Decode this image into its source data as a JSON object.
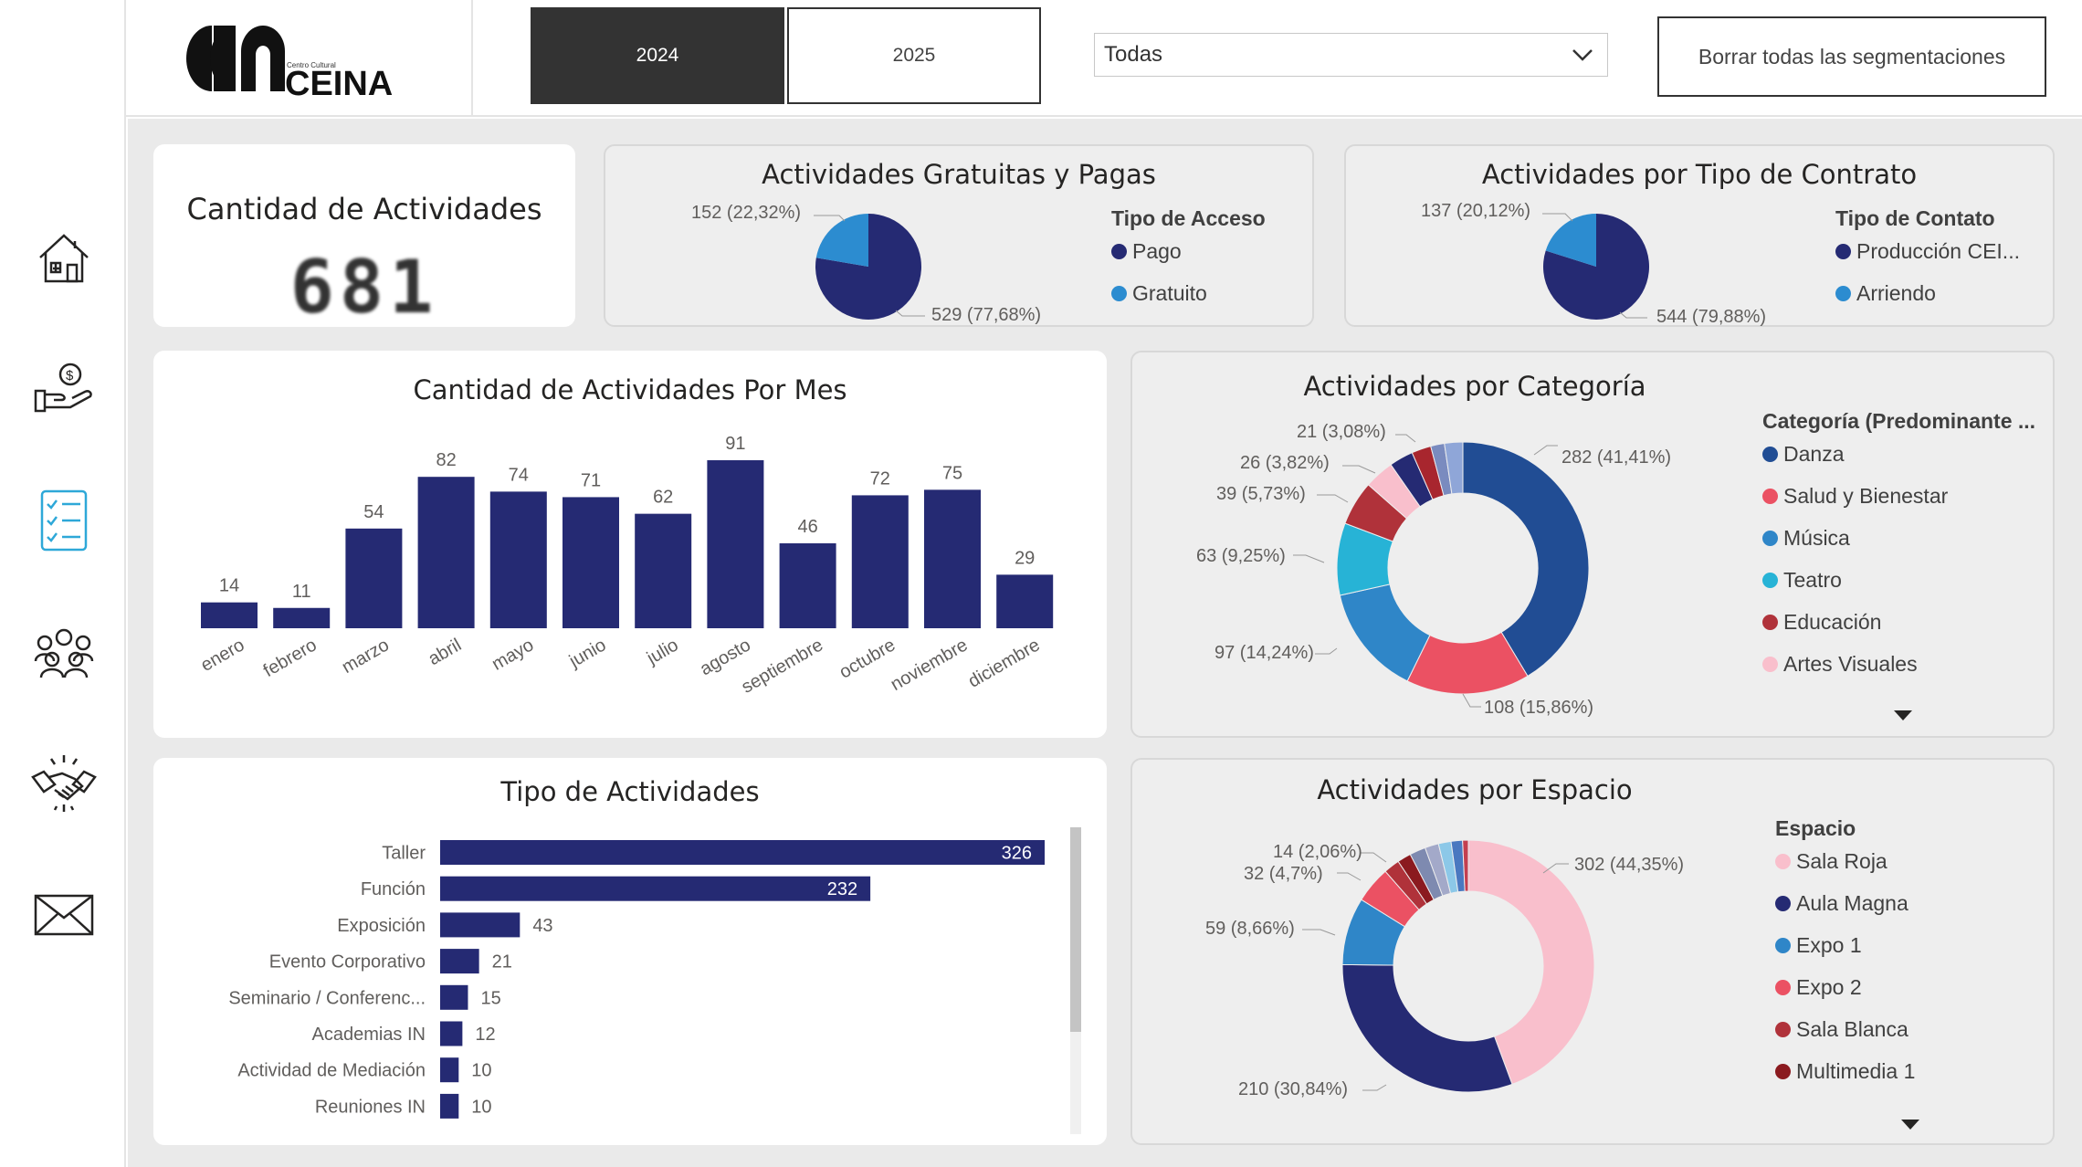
{
  "header": {
    "logo_small": "Centro Cultural",
    "logo_main": "CEINA",
    "years": [
      "2024",
      "2025"
    ],
    "selected_year": "2024",
    "dropdown_value": "Todas",
    "clear_label": "Borrar todas las segmentaciones"
  },
  "sidebar": {
    "icons": [
      "house-icon",
      "money-hand-icon",
      "checklist-icon",
      "group-icon",
      "handshake-icon",
      "mail-icon"
    ],
    "active": "checklist-icon",
    "active_color": "#2ea8d8"
  },
  "colors": {
    "navy": "#252a73",
    "blue_dark": "#214d94",
    "red": "#eb5163",
    "blue": "#2f86c8",
    "cyan": "#27b3d6",
    "dark_red": "#b0323a",
    "pink": "#f9bfcc",
    "light_blue": "#2c8cd0"
  },
  "kpi": {
    "title": "Cantidad de Actividades",
    "value": "681"
  },
  "access": {
    "title": "Actividades Gratuitas y Pagas",
    "legend_title": "Tipo de Acceso",
    "legend": [
      "Pago",
      "Gratuito"
    ],
    "labels": [
      "152 (22,32%)",
      "529 (77,68%)"
    ],
    "chart_data": {
      "type": "pie",
      "categories": [
        "Pago",
        "Gratuito"
      ],
      "values": [
        529,
        152
      ]
    }
  },
  "contract": {
    "title": "Actividades por Tipo de Contrato",
    "legend_title": "Tipo de Contato",
    "legend": [
      "Producción CEI...",
      "Arriendo"
    ],
    "labels": [
      "137 (20,12%)",
      "544 (79,88%)"
    ],
    "chart_data": {
      "type": "pie",
      "categories": [
        "Producción CEI...",
        "Arriendo"
      ],
      "values": [
        544,
        137
      ]
    }
  },
  "monthly": {
    "title": "Cantidad de Actividades Por Mes",
    "chart_data": {
      "type": "bar",
      "categories": [
        "enero",
        "febrero",
        "marzo",
        "abril",
        "mayo",
        "junio",
        "julio",
        "agosto",
        "septiembre",
        "octubre",
        "noviembre",
        "diciembre"
      ],
      "values": [
        14,
        11,
        54,
        82,
        74,
        71,
        62,
        91,
        46,
        72,
        75,
        29
      ],
      "ylim": [
        0,
        91
      ]
    }
  },
  "category": {
    "title": "Actividades por Categoría",
    "legend_title": "Categoría (Predominante ...",
    "legend": [
      "Danza",
      "Salud y Bienestar",
      "Música",
      "Teatro",
      "Educación",
      "Artes Visuales"
    ],
    "labels": [
      "282 (41,41%)",
      "108 (15,86%)",
      "97 (14,24%)",
      "63 (9,25%)",
      "39 (5,73%)",
      "26 (3,82%)",
      "21 (3,08%)"
    ],
    "chart_data": {
      "type": "pie",
      "categories": [
        "Danza",
        "Salud y Bienestar",
        "Música",
        "Teatro",
        "Educación",
        "Artes Visuales",
        "",
        "",
        "",
        ""
      ],
      "values": [
        282,
        108,
        97,
        63,
        39,
        26,
        21,
        17,
        12,
        16
      ]
    }
  },
  "types": {
    "title": "Tipo de Actividades",
    "chart_data": {
      "type": "bar",
      "categories": [
        "Taller",
        "Función",
        "Exposición",
        "Evento Corporativo",
        "Seminario / Conferenc...",
        "Academias IN",
        "Actividad de Mediación",
        "Reuniones IN"
      ],
      "values": [
        326,
        232,
        43,
        21,
        15,
        12,
        10,
        10
      ],
      "xlim": [
        0,
        326
      ]
    }
  },
  "space": {
    "title": "Actividades por Espacio",
    "legend_title": "Espacio",
    "legend": [
      "Sala Roja",
      "Aula Magna",
      "Expo 1",
      "Expo 2",
      "Sala Blanca",
      "Multimedia 1"
    ],
    "labels": [
      "302 (44,35%)",
      "210 (30,84%)",
      "59 (8,66%)",
      "32 (4,7%)",
      "14 (2,06%)"
    ],
    "chart_data": {
      "type": "pie",
      "categories": [
        "Sala Roja",
        "Aula Magna",
        "Expo 1",
        "Expo 2",
        "Sala Blanca",
        "Multimedia 1",
        "",
        "",
        "",
        "",
        ""
      ],
      "values": [
        302,
        210,
        59,
        32,
        14,
        12,
        14,
        12,
        11,
        10,
        5
      ]
    }
  }
}
